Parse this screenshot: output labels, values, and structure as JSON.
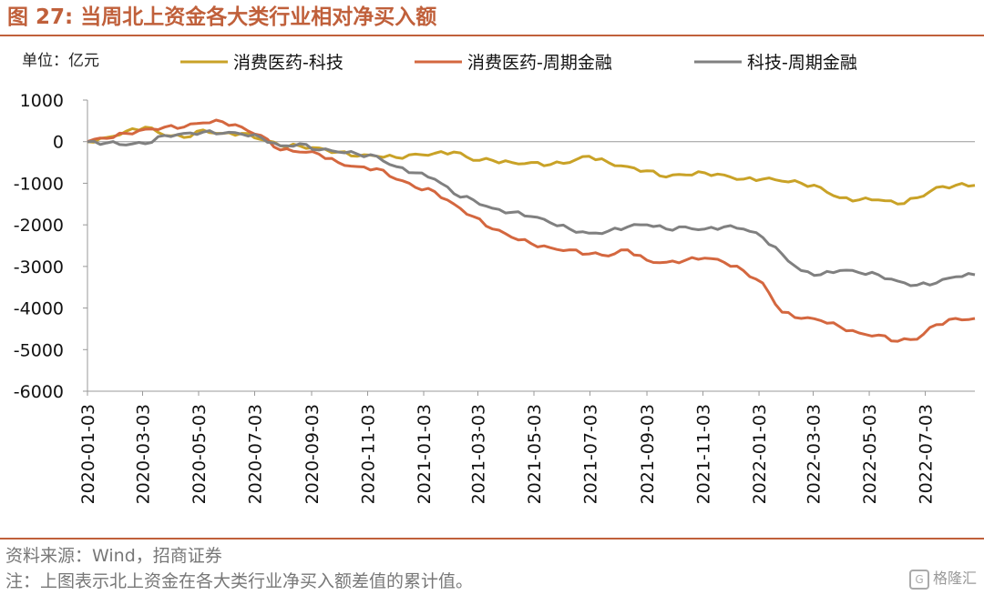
{
  "header": {
    "figure_label": "图 27:",
    "title": "当周北上资金各大类行业相对净买入额"
  },
  "unit": "单位：亿元",
  "footer": {
    "source": "资料来源：Wind，招商证券",
    "note": "注：上图表示北上资金在各大类行业净买入额差值的累计值。",
    "watermark": "格隆汇"
  },
  "chart_data": {
    "type": "line",
    "title": "当周北上资金各大类行业相对净买入额",
    "ylabel": "单位：亿元",
    "ylim": [
      -6000,
      1000
    ],
    "yticks": [
      1000,
      0,
      -1000,
      -2000,
      -3000,
      -4000,
      -5000,
      -6000
    ],
    "xticks": [
      "2020-01-03",
      "2020-03-03",
      "2020-05-03",
      "2020-07-03",
      "2020-09-03",
      "2020-11-03",
      "2021-01-03",
      "2021-03-03",
      "2021-05-03",
      "2021-07-03",
      "2021-09-03",
      "2021-11-03",
      "2022-01-03",
      "2022-03-03",
      "2022-05-03",
      "2022-07-03"
    ],
    "x_range": [
      "2020-01-03",
      "2022-08-26"
    ],
    "grid": false,
    "legend_position": "top",
    "series": [
      {
        "name": "消费医药-科技",
        "color": "#c9a227",
        "points": [
          [
            "2020-01-03",
            0
          ],
          [
            "2020-01-24",
            100
          ],
          [
            "2020-02-14",
            250
          ],
          [
            "2020-03-06",
            350
          ],
          [
            "2020-03-27",
            150
          ],
          [
            "2020-04-17",
            100
          ],
          [
            "2020-05-08",
            280
          ],
          [
            "2020-05-29",
            200
          ],
          [
            "2020-06-19",
            200
          ],
          [
            "2020-07-10",
            50
          ],
          [
            "2020-07-31",
            -100
          ],
          [
            "2020-08-21",
            -100
          ],
          [
            "2020-09-11",
            -150
          ],
          [
            "2020-10-02",
            -250
          ],
          [
            "2020-10-23",
            -350
          ],
          [
            "2020-11-13",
            -350
          ],
          [
            "2020-12-04",
            -380
          ],
          [
            "2020-12-25",
            -300
          ],
          [
            "2021-01-15",
            -280
          ],
          [
            "2021-02-05",
            -250
          ],
          [
            "2021-02-26",
            -450
          ],
          [
            "2021-03-19",
            -450
          ],
          [
            "2021-04-09",
            -500
          ],
          [
            "2021-04-30",
            -500
          ],
          [
            "2021-05-21",
            -550
          ],
          [
            "2021-06-11",
            -500
          ],
          [
            "2021-07-02",
            -350
          ],
          [
            "2021-07-23",
            -500
          ],
          [
            "2021-08-13",
            -600
          ],
          [
            "2021-09-03",
            -700
          ],
          [
            "2021-09-24",
            -850
          ],
          [
            "2021-10-15",
            -800
          ],
          [
            "2021-11-05",
            -750
          ],
          [
            "2021-11-26",
            -800
          ],
          [
            "2021-12-17",
            -900
          ],
          [
            "2022-01-07",
            -900
          ],
          [
            "2022-01-28",
            -950
          ],
          [
            "2022-02-18",
            -1000
          ],
          [
            "2022-03-11",
            -1100
          ],
          [
            "2022-04-01",
            -1350
          ],
          [
            "2022-04-22",
            -1400
          ],
          [
            "2022-05-13",
            -1400
          ],
          [
            "2022-06-03",
            -1500
          ],
          [
            "2022-06-24",
            -1350
          ],
          [
            "2022-07-15",
            -1100
          ],
          [
            "2022-08-05",
            -1050
          ],
          [
            "2022-08-26",
            -1050
          ]
        ]
      },
      {
        "name": "消费医药-周期金融",
        "color": "#d4673f",
        "points": [
          [
            "2020-01-03",
            0
          ],
          [
            "2020-01-24",
            80
          ],
          [
            "2020-02-14",
            200
          ],
          [
            "2020-03-06",
            300
          ],
          [
            "2020-03-27",
            350
          ],
          [
            "2020-04-17",
            350
          ],
          [
            "2020-05-08",
            450
          ],
          [
            "2020-05-29",
            480
          ],
          [
            "2020-06-19",
            350
          ],
          [
            "2020-07-10",
            150
          ],
          [
            "2020-07-31",
            -200
          ],
          [
            "2020-08-21",
            -250
          ],
          [
            "2020-09-11",
            -300
          ],
          [
            "2020-10-02",
            -500
          ],
          [
            "2020-10-23",
            -600
          ],
          [
            "2020-11-13",
            -650
          ],
          [
            "2020-12-04",
            -900
          ],
          [
            "2020-12-25",
            -1100
          ],
          [
            "2021-01-15",
            -1200
          ],
          [
            "2021-02-05",
            -1500
          ],
          [
            "2021-02-26",
            -1800
          ],
          [
            "2021-03-19",
            -2100
          ],
          [
            "2021-04-09",
            -2300
          ],
          [
            "2021-04-30",
            -2450
          ],
          [
            "2021-05-21",
            -2550
          ],
          [
            "2021-06-11",
            -2600
          ],
          [
            "2021-07-02",
            -2700
          ],
          [
            "2021-07-23",
            -2750
          ],
          [
            "2021-08-13",
            -2600
          ],
          [
            "2021-09-03",
            -2850
          ],
          [
            "2021-09-24",
            -2900
          ],
          [
            "2021-10-15",
            -2850
          ],
          [
            "2021-11-05",
            -2800
          ],
          [
            "2021-11-26",
            -2900
          ],
          [
            "2021-12-17",
            -3100
          ],
          [
            "2022-01-07",
            -3400
          ],
          [
            "2022-01-28",
            -4100
          ],
          [
            "2022-02-18",
            -4250
          ],
          [
            "2022-03-11",
            -4300
          ],
          [
            "2022-04-01",
            -4450
          ],
          [
            "2022-04-22",
            -4600
          ],
          [
            "2022-05-13",
            -4650
          ],
          [
            "2022-06-03",
            -4800
          ],
          [
            "2022-06-24",
            -4750
          ],
          [
            "2022-07-15",
            -4400
          ],
          [
            "2022-08-05",
            -4250
          ],
          [
            "2022-08-26",
            -4250
          ]
        ]
      },
      {
        "name": "科技-周期金融",
        "color": "#808080",
        "points": [
          [
            "2020-01-03",
            0
          ],
          [
            "2020-01-24",
            -30
          ],
          [
            "2020-02-14",
            -80
          ],
          [
            "2020-03-06",
            -50
          ],
          [
            "2020-03-27",
            150
          ],
          [
            "2020-04-17",
            200
          ],
          [
            "2020-05-08",
            230
          ],
          [
            "2020-05-29",
            200
          ],
          [
            "2020-06-19",
            180
          ],
          [
            "2020-07-10",
            100
          ],
          [
            "2020-07-31",
            -100
          ],
          [
            "2020-08-21",
            -50
          ],
          [
            "2020-09-11",
            -200
          ],
          [
            "2020-10-02",
            -250
          ],
          [
            "2020-10-23",
            -300
          ],
          [
            "2020-11-13",
            -350
          ],
          [
            "2020-12-04",
            -600
          ],
          [
            "2020-12-25",
            -750
          ],
          [
            "2021-01-15",
            -900
          ],
          [
            "2021-02-05",
            -1250
          ],
          [
            "2021-02-26",
            -1400
          ],
          [
            "2021-03-19",
            -1600
          ],
          [
            "2021-04-09",
            -1700
          ],
          [
            "2021-04-30",
            -1800
          ],
          [
            "2021-05-21",
            -1950
          ],
          [
            "2021-06-11",
            -2100
          ],
          [
            "2021-07-02",
            -2200
          ],
          [
            "2021-07-23",
            -2150
          ],
          [
            "2021-08-13",
            -2050
          ],
          [
            "2021-09-03",
            -2000
          ],
          [
            "2021-09-24",
            -2100
          ],
          [
            "2021-10-15",
            -2050
          ],
          [
            "2021-11-05",
            -2100
          ],
          [
            "2021-11-26",
            -2050
          ],
          [
            "2021-12-17",
            -2100
          ],
          [
            "2022-01-07",
            -2300
          ],
          [
            "2022-01-28",
            -2700
          ],
          [
            "2022-02-18",
            -3100
          ],
          [
            "2022-03-11",
            -3200
          ],
          [
            "2022-04-01",
            -3100
          ],
          [
            "2022-04-22",
            -3150
          ],
          [
            "2022-05-13",
            -3200
          ],
          [
            "2022-06-03",
            -3350
          ],
          [
            "2022-06-24",
            -3450
          ],
          [
            "2022-07-15",
            -3400
          ],
          [
            "2022-08-05",
            -3250
          ],
          [
            "2022-08-26",
            -3200
          ]
        ]
      }
    ]
  }
}
